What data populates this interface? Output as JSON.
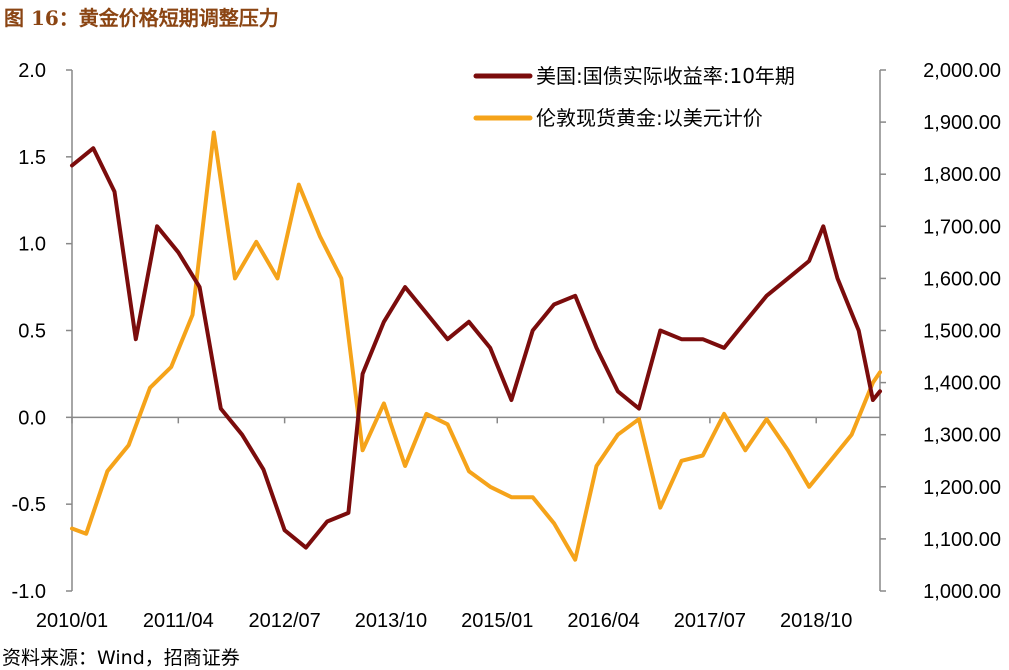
{
  "title": "图 16：黄金价格短期调整压力",
  "source": "资料来源：Wind，招商证券",
  "colors": {
    "yield": "#7b0c0c",
    "gold": "#f5a31a",
    "axis": "#888888"
  },
  "chart_data": {
    "type": "line",
    "title": "图 16：黄金价格短期调整压力",
    "x_tick_labels": [
      "2010/01",
      "2011/04",
      "2012/07",
      "2013/10",
      "2015/01",
      "2016/04",
      "2017/07",
      "2018/10"
    ],
    "x_range": [
      "2010/01",
      "2019/07"
    ],
    "y_left": {
      "range": [
        -1.0,
        2.0
      ],
      "ticks": [
        "2.0",
        "1.5",
        "1.0",
        "0.5",
        "0.0",
        "-0.5",
        "-1.0"
      ]
    },
    "y_right": {
      "range": [
        1000,
        2000
      ],
      "ticks": [
        "2,000.00",
        "1,900.00",
        "1,800.00",
        "1,700.00",
        "1,600.00",
        "1,500.00",
        "1,400.00",
        "1,300.00",
        "1,200.00",
        "1,100.00",
        "1,000.00"
      ]
    },
    "legend_position": "top-right",
    "series": [
      {
        "name": "美国:国债实际收益率:10年期",
        "axis": "left",
        "color": "#7b0c0c",
        "x": [
          "2010/01",
          "2010/04",
          "2010/07",
          "2010/10",
          "2011/01",
          "2011/04",
          "2011/07",
          "2011/10",
          "2012/01",
          "2012/04",
          "2012/07",
          "2012/10",
          "2013/01",
          "2013/04",
          "2013/06",
          "2013/09",
          "2013/12",
          "2014/03",
          "2014/06",
          "2014/09",
          "2014/12",
          "2015/03",
          "2015/06",
          "2015/09",
          "2015/12",
          "2016/03",
          "2016/06",
          "2016/09",
          "2016/12",
          "2017/03",
          "2017/06",
          "2017/09",
          "2017/12",
          "2018/03",
          "2018/06",
          "2018/09",
          "2018/11",
          "2019/01",
          "2019/04",
          "2019/06",
          "2019/07"
        ],
        "values": [
          1.45,
          1.55,
          1.3,
          0.45,
          1.1,
          0.95,
          0.75,
          0.05,
          -0.1,
          -0.3,
          -0.65,
          -0.75,
          -0.6,
          -0.55,
          0.25,
          0.55,
          0.75,
          0.6,
          0.45,
          0.55,
          0.4,
          0.1,
          0.5,
          0.65,
          0.7,
          0.4,
          0.15,
          0.05,
          0.5,
          0.45,
          0.45,
          0.4,
          0.55,
          0.7,
          0.8,
          0.9,
          1.1,
          0.8,
          0.5,
          0.1,
          0.15
        ]
      },
      {
        "name": "伦敦现货黄金:以美元计价",
        "axis": "right",
        "color": "#f5a31a",
        "x": [
          "2010/01",
          "2010/03",
          "2010/06",
          "2010/09",
          "2010/12",
          "2011/03",
          "2011/06",
          "2011/09",
          "2011/12",
          "2012/03",
          "2012/06",
          "2012/09",
          "2012/12",
          "2013/03",
          "2013/06",
          "2013/09",
          "2013/12",
          "2014/03",
          "2014/06",
          "2014/09",
          "2014/12",
          "2015/03",
          "2015/06",
          "2015/09",
          "2015/12",
          "2016/03",
          "2016/06",
          "2016/09",
          "2016/12",
          "2017/03",
          "2017/06",
          "2017/09",
          "2017/12",
          "2018/03",
          "2018/06",
          "2018/09",
          "2018/12",
          "2019/03",
          "2019/06",
          "2019/07"
        ],
        "values": [
          1120,
          1110,
          1230,
          1280,
          1390,
          1430,
          1530,
          1880,
          1600,
          1670,
          1600,
          1780,
          1680,
          1600,
          1270,
          1360,
          1240,
          1340,
          1320,
          1230,
          1200,
          1180,
          1180,
          1130,
          1060,
          1240,
          1300,
          1330,
          1160,
          1250,
          1260,
          1340,
          1270,
          1330,
          1270,
          1200,
          1250,
          1300,
          1400,
          1420
        ]
      }
    ]
  }
}
